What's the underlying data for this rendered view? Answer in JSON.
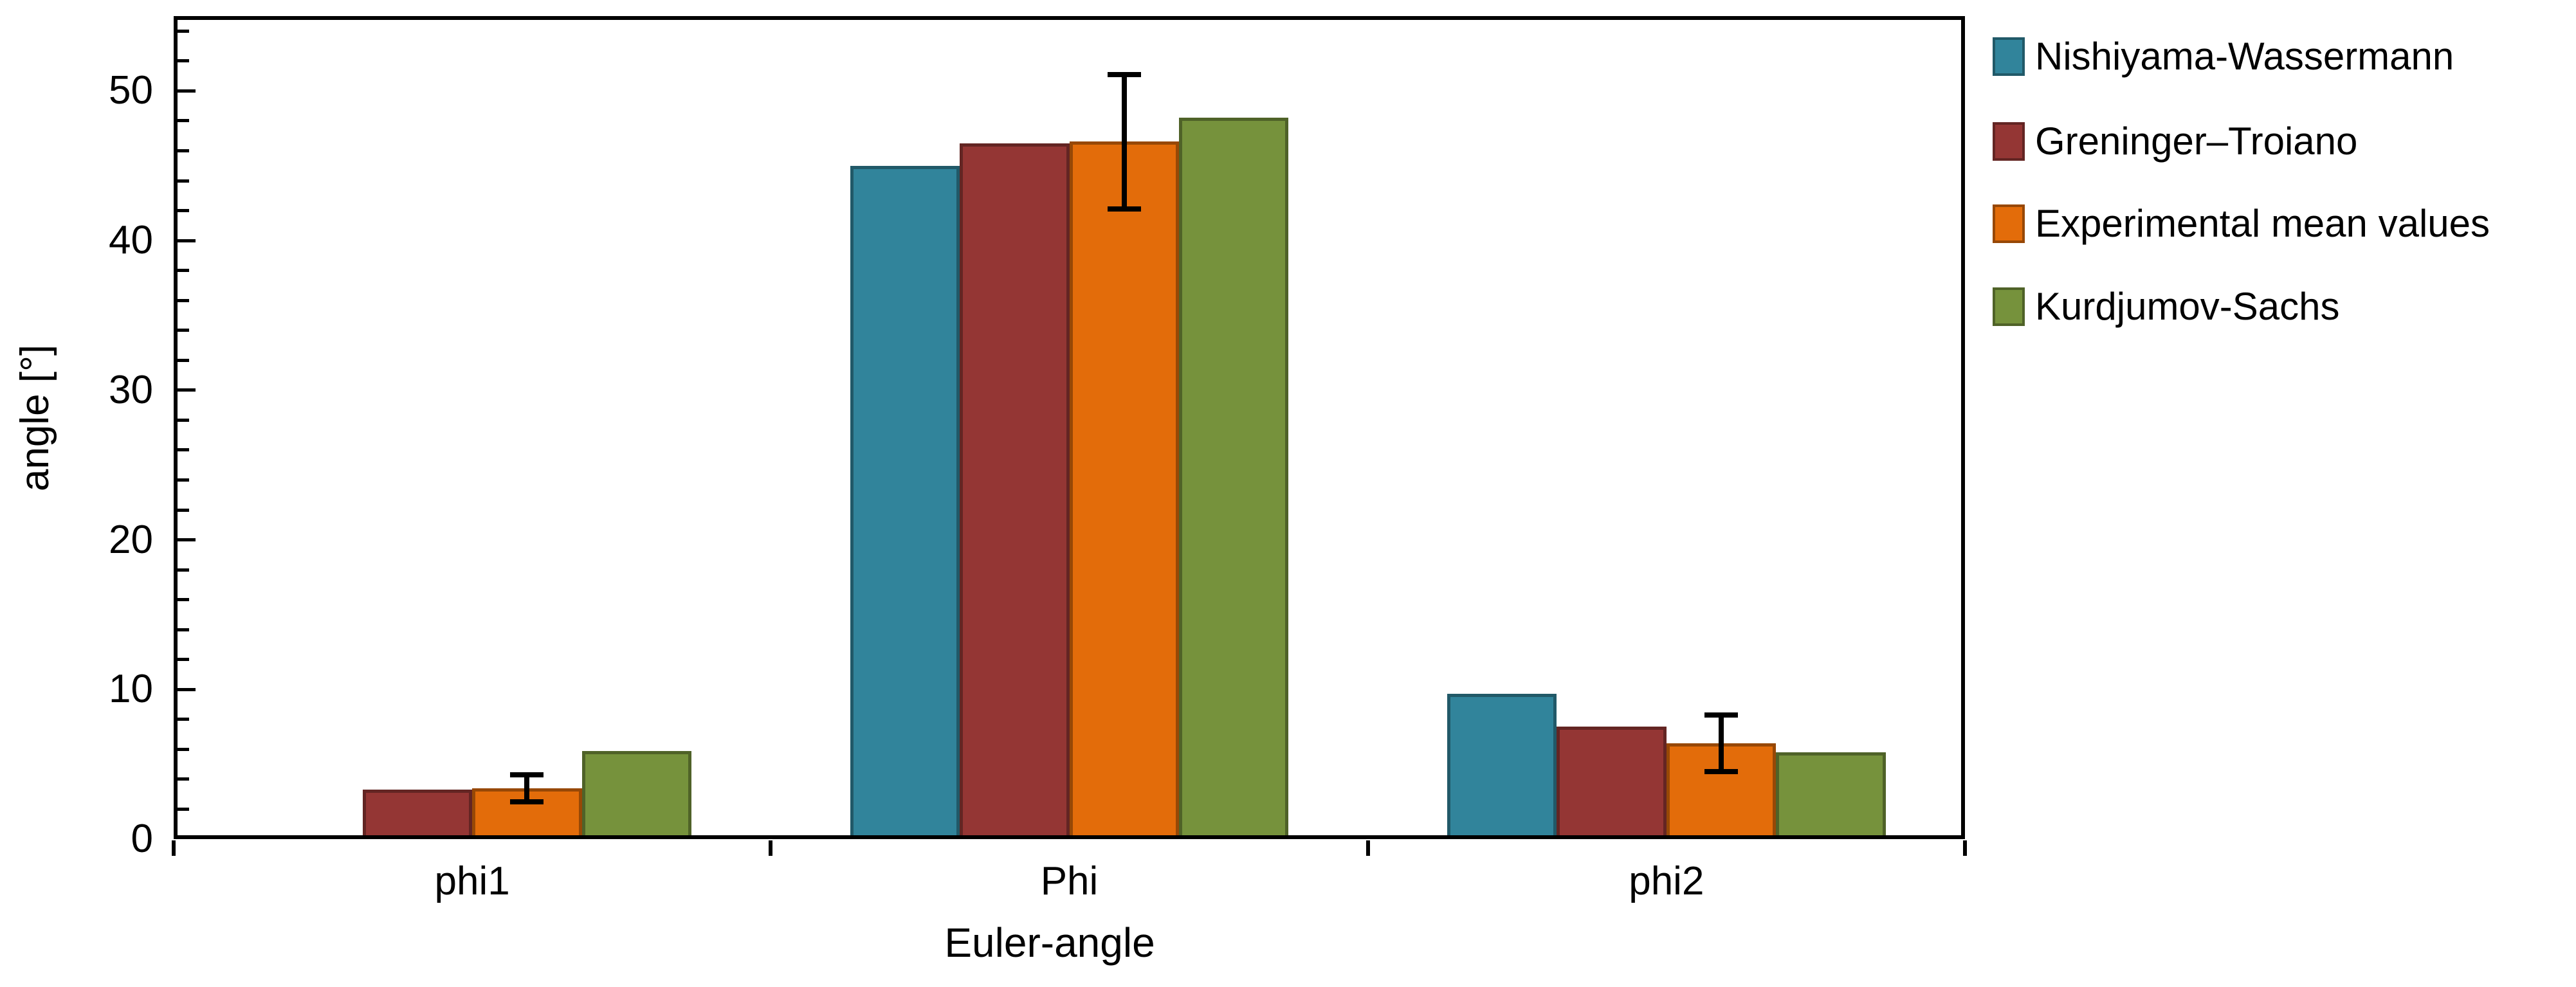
{
  "chart_data": {
    "type": "bar",
    "title": "",
    "xlabel": "Euler-angle",
    "ylabel": "angle [°]",
    "categories": [
      "phi1",
      "Phi",
      "phi2"
    ],
    "ylim": [
      0,
      55
    ],
    "yticks": [
      0,
      10,
      20,
      30,
      40,
      50
    ],
    "minor_tick_step": 2,
    "grid": "off",
    "legend_position": "right-outside",
    "background": "#FFFFFF",
    "axis_color": "#000000",
    "series": [
      {
        "name": "Nishiyama-Wassermann",
        "color": "#31849B",
        "border_color": "#215968",
        "values": [
          0,
          45.0,
          9.7
        ]
      },
      {
        "name": "Greninger–Troiano",
        "color": "#943634",
        "border_color": "#632523",
        "values": [
          3.3,
          46.5,
          7.5
        ]
      },
      {
        "name": "Experimental mean values",
        "color": "#E36C0A",
        "border_color": "#974806",
        "values": [
          3.4,
          46.6,
          6.4
        ],
        "error_bars": [
          0.9,
          4.5,
          1.9
        ]
      },
      {
        "name": "Kurdjumov-Sachs",
        "color": "#76923C",
        "border_color": "#4F6228",
        "values": [
          5.9,
          48.2,
          5.8
        ]
      }
    ]
  }
}
